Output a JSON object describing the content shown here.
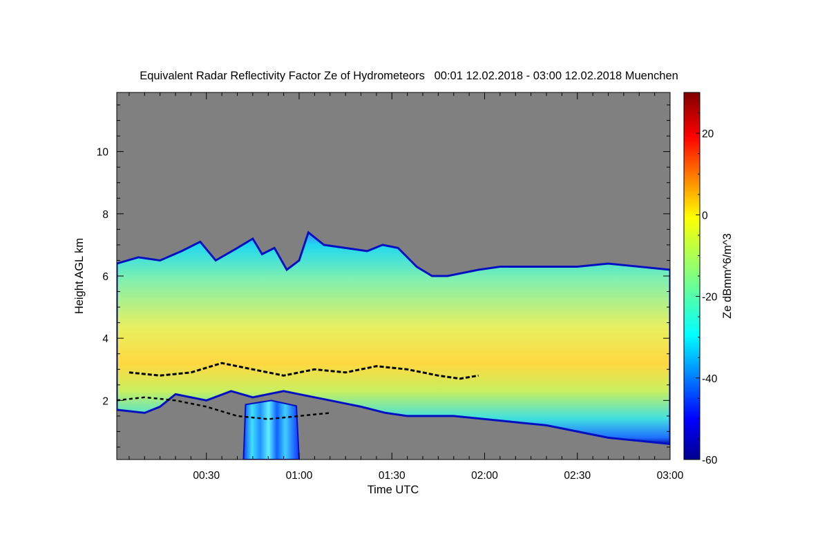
{
  "chart_data": {
    "type": "heatmap",
    "title": "Equivalent Radar Reflectivity Factor Ze of Hydrometeors   00:01 12.02.2018 - 03:00 12.02.2018 Muenchen",
    "xlabel": "Time UTC",
    "ylabel": "Height AGL km",
    "colorbar_label": "Ze dBmm^6/m^3",
    "x_ticks": [
      "00:30",
      "01:00",
      "01:30",
      "02:00",
      "02:30",
      "03:00"
    ],
    "x_tick_minutes": [
      30,
      60,
      90,
      120,
      150,
      180
    ],
    "xlim_minutes": [
      1,
      180
    ],
    "y_ticks": [
      "2",
      "4",
      "6",
      "8",
      "10"
    ],
    "y_tick_values": [
      2,
      4,
      6,
      8,
      10
    ],
    "ylim": [
      0.1,
      11.9
    ],
    "colorbar_ticks": [
      "-60",
      "-40",
      "-20",
      "0",
      "20"
    ],
    "colorbar_tick_values": [
      -60,
      -40,
      -20,
      0,
      20
    ],
    "zlim": [
      -60,
      30
    ],
    "colormap": "jet",
    "background_color": "#808080",
    "cloud_top_km": [
      [
        1,
        6.4
      ],
      [
        8,
        6.6
      ],
      [
        15,
        6.5
      ],
      [
        22,
        6.8
      ],
      [
        28,
        7.1
      ],
      [
        33,
        6.5
      ],
      [
        40,
        6.9
      ],
      [
        45,
        7.2
      ],
      [
        48,
        6.7
      ],
      [
        52,
        6.9
      ],
      [
        56,
        6.2
      ],
      [
        60,
        6.5
      ],
      [
        63,
        7.4
      ],
      [
        68,
        7.0
      ],
      [
        75,
        6.9
      ],
      [
        82,
        6.8
      ],
      [
        87,
        7.0
      ],
      [
        92,
        6.9
      ],
      [
        98,
        6.3
      ],
      [
        103,
        6.0
      ],
      [
        108,
        6.0
      ],
      [
        113,
        6.1
      ],
      [
        118,
        6.2
      ],
      [
        125,
        6.3
      ],
      [
        135,
        6.3
      ],
      [
        150,
        6.3
      ],
      [
        160,
        6.4
      ],
      [
        170,
        6.3
      ],
      [
        180,
        6.2
      ]
    ],
    "cloud_base_km": [
      [
        1,
        1.7
      ],
      [
        10,
        1.6
      ],
      [
        15,
        1.8
      ],
      [
        20,
        2.2
      ],
      [
        30,
        2.0
      ],
      [
        38,
        2.3
      ],
      [
        45,
        2.1
      ],
      [
        55,
        2.3
      ],
      [
        60,
        2.2
      ],
      [
        70,
        2.0
      ],
      [
        80,
        1.8
      ],
      [
        88,
        1.6
      ],
      [
        95,
        1.5
      ],
      [
        110,
        1.5
      ],
      [
        120,
        1.4
      ],
      [
        130,
        1.3
      ],
      [
        140,
        1.2
      ],
      [
        150,
        1.0
      ],
      [
        160,
        0.8
      ],
      [
        170,
        0.7
      ],
      [
        180,
        0.6
      ]
    ],
    "melting_layer_km": [
      [
        5,
        2.9
      ],
      [
        15,
        2.8
      ],
      [
        25,
        2.9
      ],
      [
        35,
        3.2
      ],
      [
        45,
        3.0
      ],
      [
        55,
        2.8
      ],
      [
        65,
        3.0
      ],
      [
        75,
        2.9
      ],
      [
        85,
        3.1
      ],
      [
        95,
        3.0
      ],
      [
        105,
        2.8
      ],
      [
        112,
        2.7
      ],
      [
        118,
        2.8
      ]
    ],
    "low_cloud_base_km": [
      [
        1,
        2.0
      ],
      [
        10,
        2.1
      ],
      [
        20,
        2.0
      ],
      [
        30,
        1.8
      ],
      [
        40,
        1.5
      ],
      [
        50,
        1.4
      ],
      [
        60,
        1.5
      ],
      [
        70,
        1.6
      ]
    ],
    "rain_band": {
      "start_minute": 42,
      "end_minute": 60,
      "top_km": 2.0,
      "bottom_km": 0.1
    }
  }
}
